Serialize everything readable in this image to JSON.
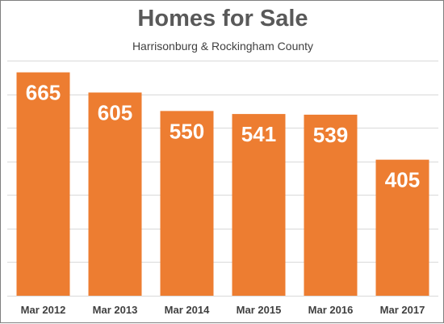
{
  "chart_data": {
    "type": "bar",
    "title": "Homes for Sale",
    "subtitle": "Harrisonburg & Rockingham County",
    "categories": [
      "Mar 2012",
      "Mar 2013",
      "Mar 2014",
      "Mar 2015",
      "Mar 2016",
      "Mar 2017"
    ],
    "values": [
      665,
      605,
      550,
      541,
      539,
      405
    ],
    "data_labels": [
      "665",
      "605",
      "550",
      "541",
      "539",
      "405"
    ],
    "xlabel": "",
    "ylabel": "",
    "ylim": [
      0,
      700
    ],
    "y_gridline_step": 100,
    "grid": true,
    "legend": "none",
    "colors": {
      "bar": "#ED7D31",
      "gridline": "#D9D9D9",
      "data_label": "#FFFFFF",
      "tick_label": "#404040",
      "title": "#595959"
    }
  }
}
